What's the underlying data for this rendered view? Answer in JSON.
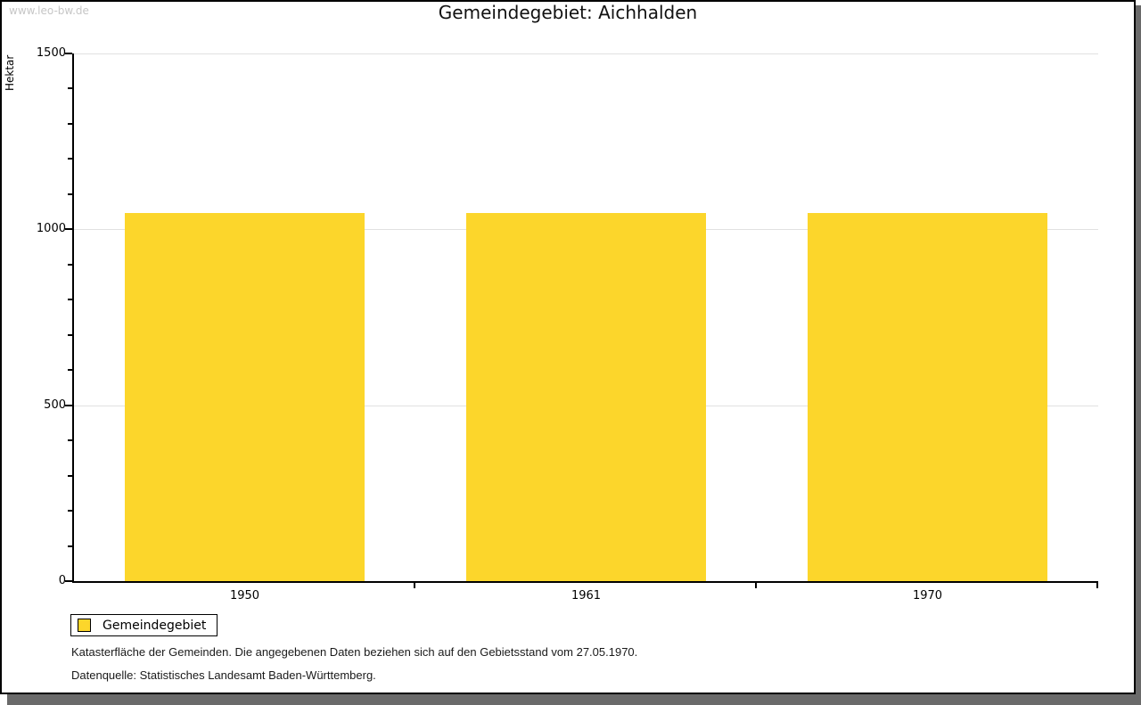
{
  "watermark": "www.leo-bw.de",
  "title": "Gemeindegebiet: Aichhalden",
  "chart_data": {
    "type": "bar",
    "categories": [
      "1950",
      "1961",
      "1970"
    ],
    "values": [
      1046,
      1046,
      1046
    ],
    "title": "Gemeindegebiet: Aichhalden",
    "xlabel": "",
    "ylabel": "Hektar",
    "ylim": [
      0,
      1500
    ],
    "yticks_major": [
      0,
      500,
      1000,
      1500
    ],
    "ytick_minor_step": 100,
    "grid": "horizontal-major-lines",
    "legend_entries": [
      "Gemeindegebiet"
    ],
    "legend_position": "bottom-left",
    "bar_color": "#fcd62b"
  },
  "legend": {
    "label": "Gemeindegebiet"
  },
  "footnotes": [
    "Katasterfläche der Gemeinden. Die angegebenen Daten beziehen sich auf den Gebietsstand vom 27.05.1970.",
    "Datenquelle: Statistisches Landesamt Baden-Württemberg."
  ],
  "colors": {
    "bar": "#fcd62b",
    "grid": "#e1e1e1",
    "axis": "#000000",
    "watermark": "#c6c6c6",
    "frame_shadow": "#6a6a6a"
  }
}
